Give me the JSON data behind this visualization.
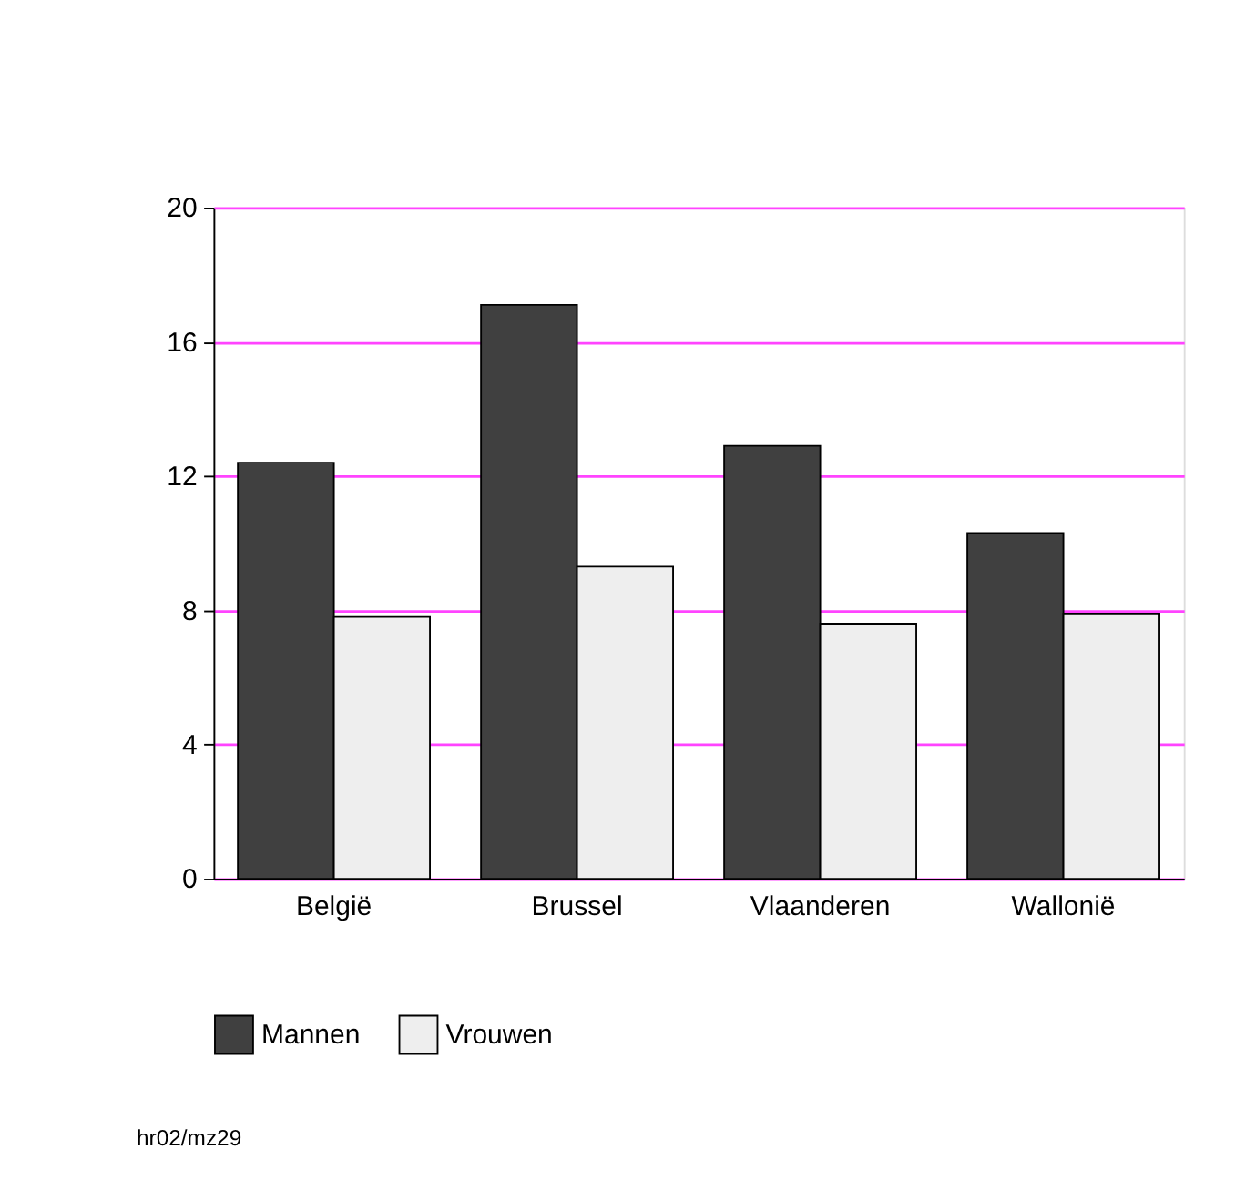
{
  "chart_data": {
    "type": "bar",
    "categories": [
      "België",
      "Brussel",
      "Vlaanderen",
      "Wallonië"
    ],
    "series": [
      {
        "name": "Mannen",
        "color": "#404040",
        "values": [
          12.4,
          17.1,
          12.9,
          10.3
        ]
      },
      {
        "name": "Vrouwen",
        "color": "#eeeeee",
        "values": [
          7.8,
          9.3,
          7.6,
          7.9
        ]
      }
    ],
    "ylim": [
      0,
      20
    ],
    "yticks": [
      0,
      4,
      8,
      12,
      16,
      20
    ],
    "grid": "y",
    "legend": "bottom",
    "annotations": [
      "hr02/mz29"
    ]
  }
}
